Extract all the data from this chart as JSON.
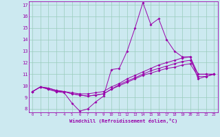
{
  "xlabel": "Windchill (Refroidissement éolien,°C)",
  "xlim": [
    -0.5,
    23.5
  ],
  "ylim": [
    7.7,
    17.3
  ],
  "xticks": [
    0,
    1,
    2,
    3,
    4,
    5,
    6,
    7,
    8,
    9,
    10,
    11,
    12,
    13,
    14,
    15,
    16,
    17,
    18,
    19,
    20,
    21,
    22,
    23
  ],
  "yticks": [
    8,
    9,
    10,
    11,
    12,
    13,
    14,
    15,
    16,
    17
  ],
  "bg_color": "#cce9f0",
  "line_color": "#9900aa",
  "grid_color": "#99ccbb",
  "series": [
    [
      9.5,
      9.9,
      9.7,
      9.5,
      9.4,
      8.5,
      7.8,
      8.0,
      8.6,
      9.1,
      11.4,
      11.5,
      13.0,
      15.0,
      17.2,
      15.3,
      15.8,
      14.0,
      13.0,
      12.5,
      12.5,
      10.6,
      10.8,
      11.0
    ],
    [
      9.5,
      9.9,
      9.7,
      9.5,
      9.5,
      9.3,
      9.2,
      9.1,
      9.2,
      9.3,
      9.7,
      10.1,
      10.4,
      10.7,
      11.0,
      11.3,
      11.5,
      11.7,
      11.9,
      12.1,
      12.2,
      11.0,
      11.0,
      11.0
    ],
    [
      9.5,
      9.9,
      9.8,
      9.6,
      9.5,
      9.4,
      9.3,
      9.3,
      9.4,
      9.5,
      9.9,
      10.2,
      10.6,
      10.9,
      11.2,
      11.5,
      11.8,
      12.0,
      12.2,
      12.4,
      12.5,
      11.0,
      11.0,
      11.0
    ],
    [
      9.5,
      9.9,
      9.8,
      9.6,
      9.5,
      9.3,
      9.2,
      9.1,
      9.2,
      9.3,
      9.7,
      10.0,
      10.3,
      10.6,
      10.9,
      11.1,
      11.3,
      11.5,
      11.6,
      11.8,
      11.9,
      10.8,
      10.8,
      11.0
    ]
  ]
}
